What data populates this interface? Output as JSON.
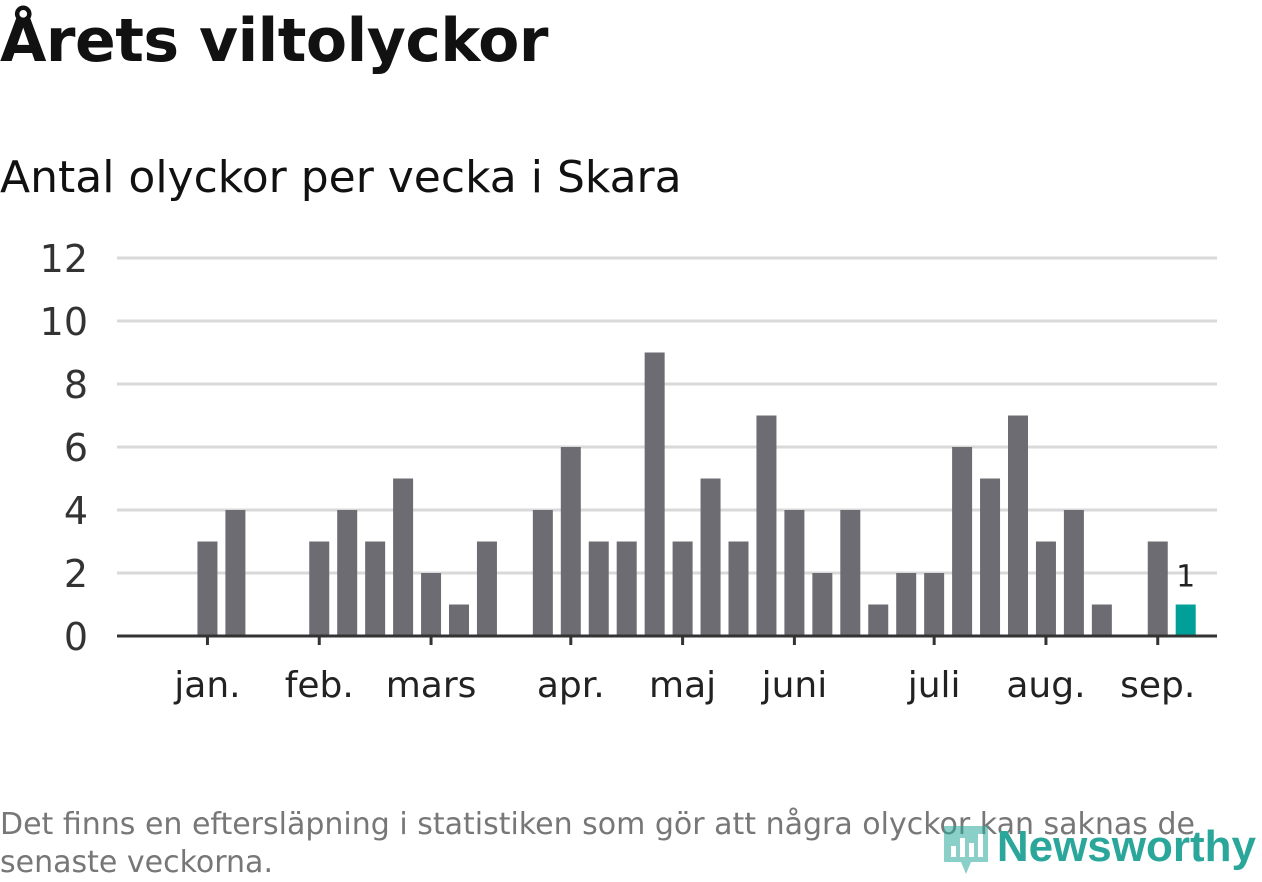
{
  "title": "Årets viltolyckor",
  "subtitle": "Antal olyckor per vecka i Skara",
  "footnote": "Det finns en eftersläpning i statistiken som gör att några olyckor kan saknas de senaste veckorna.",
  "logo": "Newsworthy",
  "colors": {
    "bar": "#6d6c72",
    "highlight": "#00a098",
    "grid": "#d9d9d9",
    "axis": "#333333"
  },
  "chart_data": {
    "type": "bar",
    "title": "Antal olyckor per vecka i Skara",
    "xlabel": "",
    "ylabel": "",
    "ylim": [
      0,
      12
    ],
    "yticks": [
      0,
      2,
      4,
      6,
      8,
      10,
      12
    ],
    "grid": true,
    "weeks": [
      1,
      2,
      3,
      4,
      5,
      6,
      7,
      8,
      9,
      10,
      11,
      12,
      13,
      14,
      15,
      16,
      17,
      18,
      19,
      20,
      21,
      22,
      23,
      24,
      25,
      26,
      27,
      28,
      29,
      30,
      31,
      32,
      33,
      34,
      35,
      36,
      37
    ],
    "values": [
      0,
      3,
      4,
      0,
      0,
      3,
      4,
      3,
      5,
      2,
      1,
      3,
      0,
      4,
      6,
      3,
      3,
      9,
      3,
      5,
      3,
      7,
      4,
      2,
      4,
      1,
      2,
      2,
      6,
      5,
      7,
      3,
      4,
      1,
      0,
      3,
      1
    ],
    "month_labels": [
      {
        "label": "jan.",
        "week": 2
      },
      {
        "label": "feb.",
        "week": 6
      },
      {
        "label": "mars",
        "week": 10
      },
      {
        "label": "apr.",
        "week": 15
      },
      {
        "label": "maj",
        "week": 19
      },
      {
        "label": "juni",
        "week": 23
      },
      {
        "label": "juli",
        "week": 28
      },
      {
        "label": "aug.",
        "week": 32
      },
      {
        "label": "sep.",
        "week": 36
      }
    ],
    "highlight_week": 37,
    "highlight_label": "1"
  }
}
